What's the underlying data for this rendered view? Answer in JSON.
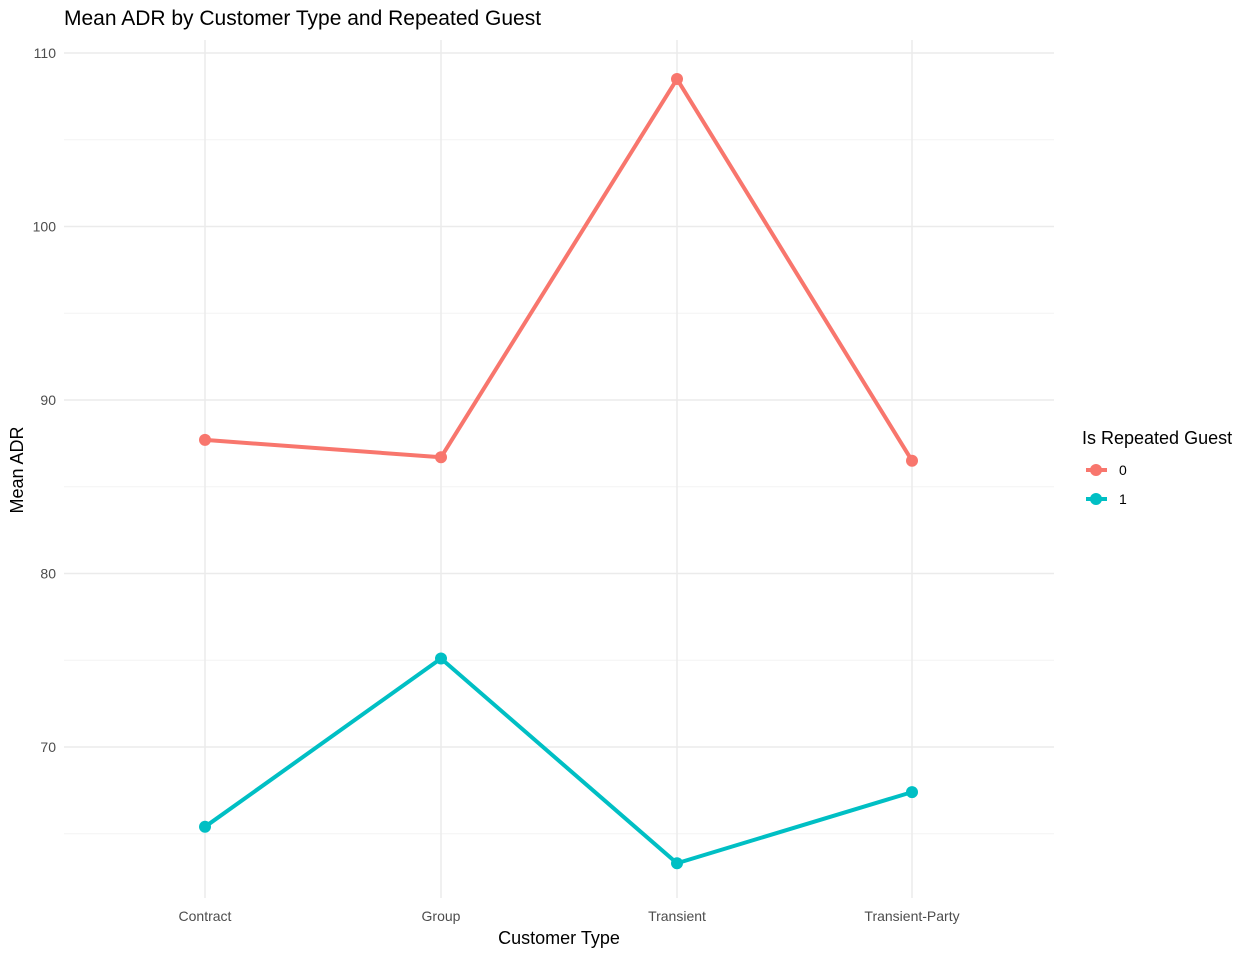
{
  "chart_data": {
    "type": "line",
    "title": "Mean ADR by Customer Type and Repeated Guest",
    "xlabel": "Customer Type",
    "ylabel": "Mean ADR",
    "categories": [
      "Contract",
      "Group",
      "Transient",
      "Transient-Party"
    ],
    "ylim": [
      61,
      111
    ],
    "yticks": [
      70,
      80,
      90,
      100,
      110
    ],
    "grid": true,
    "legend": {
      "title": "Is Repeated Guest",
      "position": "right"
    },
    "series": [
      {
        "name": "0",
        "color": "#F8766D",
        "values": [
          87.7,
          86.7,
          108.5,
          86.5
        ]
      },
      {
        "name": "1",
        "color": "#00BFC4",
        "values": [
          65.4,
          75.1,
          63.3,
          67.4
        ]
      }
    ]
  }
}
